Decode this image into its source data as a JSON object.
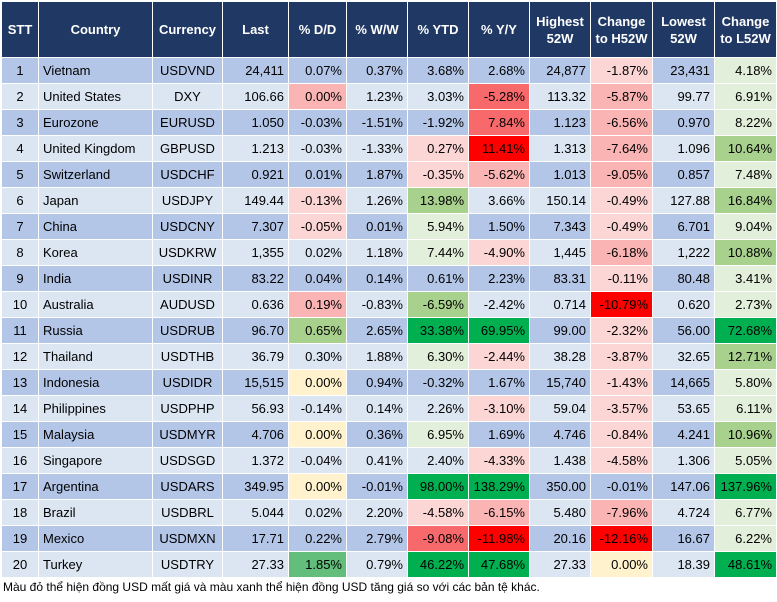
{
  "colors": {
    "header_bg": "#1f3864",
    "row_odd": "#b4c6e7",
    "row_even": "#dce6f2",
    "red_strong": "#ff0000",
    "red_mid": "#f8696b",
    "red_light": "#fbb4b4",
    "red_pale": "#fcd5d5",
    "neutral": "#fff2cc",
    "green_pale": "#e2efda",
    "green_light": "#c6e0b4",
    "green_mid": "#a9d18e",
    "green_strong": "#63be7b",
    "green_dark": "#00b050"
  },
  "headers": [
    "STT",
    "Country",
    "Currency",
    "Last",
    "% D/D",
    "% W/W",
    "% YTD",
    "% Y/Y",
    "Highest 52W",
    "Change to H52W",
    "Lowest 52W",
    "Change to L52W"
  ],
  "rows": [
    {
      "stt": "1",
      "country": "Vietnam",
      "currency": "USDVND",
      "last": "24,411",
      "dd": "0.07%",
      "ww": "0.37%",
      "ytd": "3.68%",
      "yy": "2.68%",
      "high": "24,877",
      "ch_high": "-1.87%",
      "low": "23,431",
      "ch_low": "4.18%",
      "bg": {
        "dd": "",
        "ww": "",
        "ytd": "",
        "yy": "",
        "ch_high": "#fcd5d5",
        "ch_low": "#e2efda"
      }
    },
    {
      "stt": "2",
      "country": "United States",
      "currency": "DXY",
      "last": "106.66",
      "dd": "0.00%",
      "ww": "1.23%",
      "ytd": "3.03%",
      "yy": "-5.28%",
      "high": "113.32",
      "ch_high": "-5.87%",
      "low": "99.77",
      "ch_low": "6.91%",
      "bg": {
        "dd": "#fbb4b4",
        "ww": "",
        "ytd": "",
        "yy": "#f8696b",
        "ch_high": "#fbb4b4",
        "ch_low": "#e2efda"
      }
    },
    {
      "stt": "3",
      "country": "Eurozone",
      "currency": "EURUSD",
      "last": "1.050",
      "dd": "-0.03%",
      "ww": "-1.51%",
      "ytd": "-1.92%",
      "yy": "7.84%",
      "high": "1.123",
      "ch_high": "-6.56%",
      "low": "0.970",
      "ch_low": "8.22%",
      "bg": {
        "dd": "",
        "ww": "",
        "ytd": "",
        "yy": "#f8696b",
        "ch_high": "#fbb4b4",
        "ch_low": "#e2efda"
      }
    },
    {
      "stt": "4",
      "country": "United Kingdom",
      "currency": "GBPUSD",
      "last": "1.213",
      "dd": "-0.03%",
      "ww": "-1.33%",
      "ytd": "0.27%",
      "yy": "11.41%",
      "high": "1.313",
      "ch_high": "-7.64%",
      "low": "1.096",
      "ch_low": "10.64%",
      "bg": {
        "dd": "",
        "ww": "",
        "ytd": "#fcd5d5",
        "yy": "#ff0000",
        "ch_high": "#fbb4b4",
        "ch_low": "#a9d18e"
      }
    },
    {
      "stt": "5",
      "country": "Switzerland",
      "currency": "USDCHF",
      "last": "0.921",
      "dd": "0.01%",
      "ww": "1.87%",
      "ytd": "-0.35%",
      "yy": "-5.62%",
      "high": "1.013",
      "ch_high": "-9.05%",
      "low": "0.857",
      "ch_low": "7.48%",
      "bg": {
        "dd": "",
        "ww": "",
        "ytd": "#fcd5d5",
        "yy": "#fbb4b4",
        "ch_high": "#fbb4b4",
        "ch_low": "#e2efda"
      }
    },
    {
      "stt": "6",
      "country": "Japan",
      "currency": "USDJPY",
      "last": "149.44",
      "dd": "-0.13%",
      "ww": "1.26%",
      "ytd": "13.98%",
      "yy": "3.66%",
      "high": "150.14",
      "ch_high": "-0.49%",
      "low": "127.88",
      "ch_low": "16.84%",
      "bg": {
        "dd": "#fcd5d5",
        "ww": "",
        "ytd": "#a9d18e",
        "yy": "",
        "ch_high": "#fcd5d5",
        "ch_low": "#a9d18e"
      }
    },
    {
      "stt": "7",
      "country": "China",
      "currency": "USDCNY",
      "last": "7.307",
      "dd": "-0.05%",
      "ww": "0.01%",
      "ytd": "5.94%",
      "yy": "1.50%",
      "high": "7.343",
      "ch_high": "-0.49%",
      "low": "6.701",
      "ch_low": "9.04%",
      "bg": {
        "dd": "#fcd5d5",
        "ww": "",
        "ytd": "#e2efda",
        "yy": "",
        "ch_high": "#fcd5d5",
        "ch_low": "#e2efda"
      }
    },
    {
      "stt": "8",
      "country": "Korea",
      "currency": "USDKRW",
      "last": "1,355",
      "dd": "0.02%",
      "ww": "1.18%",
      "ytd": "7.44%",
      "yy": "-4.90%",
      "high": "1,445",
      "ch_high": "-6.18%",
      "low": "1,222",
      "ch_low": "10.88%",
      "bg": {
        "dd": "",
        "ww": "",
        "ytd": "#e2efda",
        "yy": "#fcd5d5",
        "ch_high": "#fbb4b4",
        "ch_low": "#a9d18e"
      }
    },
    {
      "stt": "9",
      "country": "India",
      "currency": "USDINR",
      "last": "83.22",
      "dd": "0.04%",
      "ww": "0.14%",
      "ytd": "0.61%",
      "yy": "2.23%",
      "high": "83.31",
      "ch_high": "-0.11%",
      "low": "80.48",
      "ch_low": "3.41%",
      "bg": {
        "dd": "",
        "ww": "",
        "ytd": "",
        "yy": "",
        "ch_high": "#fcd5d5",
        "ch_low": "#e2efda"
      }
    },
    {
      "stt": "10",
      "country": "Australia",
      "currency": "AUDUSD",
      "last": "0.636",
      "dd": "0.19%",
      "ww": "-0.83%",
      "ytd": "-6.59%",
      "yy": "-2.42%",
      "high": "0.714",
      "ch_high": "-10.79%",
      "low": "0.620",
      "ch_low": "2.73%",
      "bg": {
        "dd": "#fbb4b4",
        "ww": "",
        "ytd": "#a9d18e",
        "yy": "",
        "ch_high": "#ff0000",
        "ch_low": "#e2efda"
      }
    },
    {
      "stt": "11",
      "country": "Russia",
      "currency": "USDRUB",
      "last": "96.70",
      "dd": "0.65%",
      "ww": "2.65%",
      "ytd": "33.38%",
      "yy": "69.95%",
      "high": "99.00",
      "ch_high": "-2.32%",
      "low": "56.00",
      "ch_low": "72.68%",
      "bg": {
        "dd": "#a9d18e",
        "ww": "",
        "ytd": "#00b050",
        "yy": "#00b050",
        "ch_high": "#fcd5d5",
        "ch_low": "#00b050"
      }
    },
    {
      "stt": "12",
      "country": "Thailand",
      "currency": "USDTHB",
      "last": "36.79",
      "dd": "0.30%",
      "ww": "1.88%",
      "ytd": "6.30%",
      "yy": "-2.44%",
      "high": "38.28",
      "ch_high": "-3.87%",
      "low": "32.65",
      "ch_low": "12.71%",
      "bg": {
        "dd": "",
        "ww": "",
        "ytd": "#e2efda",
        "yy": "#fcd5d5",
        "ch_high": "#fcd5d5",
        "ch_low": "#a9d18e"
      }
    },
    {
      "stt": "13",
      "country": "Indonesia",
      "currency": "USDIDR",
      "last": "15,515",
      "dd": "0.00%",
      "ww": "0.94%",
      "ytd": "-0.32%",
      "yy": "1.67%",
      "high": "15,740",
      "ch_high": "-1.43%",
      "low": "14,665",
      "ch_low": "5.80%",
      "bg": {
        "dd": "#fff2cc",
        "ww": "",
        "ytd": "",
        "yy": "",
        "ch_high": "#fcd5d5",
        "ch_low": "#e2efda"
      }
    },
    {
      "stt": "14",
      "country": "Philippines",
      "currency": "USDPHP",
      "last": "56.93",
      "dd": "-0.14%",
      "ww": "0.14%",
      "ytd": "2.26%",
      "yy": "-3.10%",
      "high": "59.04",
      "ch_high": "-3.57%",
      "low": "53.65",
      "ch_low": "6.11%",
      "bg": {
        "dd": "",
        "ww": "",
        "ytd": "",
        "yy": "#fcd5d5",
        "ch_high": "#fcd5d5",
        "ch_low": "#e2efda"
      }
    },
    {
      "stt": "15",
      "country": "Malaysia",
      "currency": "USDMYR",
      "last": "4.706",
      "dd": "0.00%",
      "ww": "0.36%",
      "ytd": "6.95%",
      "yy": "1.69%",
      "high": "4.746",
      "ch_high": "-0.84%",
      "low": "4.241",
      "ch_low": "10.96%",
      "bg": {
        "dd": "#fff2cc",
        "ww": "",
        "ytd": "#e2efda",
        "yy": "",
        "ch_high": "#fcd5d5",
        "ch_low": "#a9d18e"
      }
    },
    {
      "stt": "16",
      "country": "Singapore",
      "currency": "USDSGD",
      "last": "1.372",
      "dd": "-0.04%",
      "ww": "0.41%",
      "ytd": "2.40%",
      "yy": "-4.33%",
      "high": "1.438",
      "ch_high": "-4.58%",
      "low": "1.306",
      "ch_low": "5.05%",
      "bg": {
        "dd": "",
        "ww": "",
        "ytd": "",
        "yy": "#fcd5d5",
        "ch_high": "#fcd5d5",
        "ch_low": "#e2efda"
      }
    },
    {
      "stt": "17",
      "country": "Argentina",
      "currency": "USDARS",
      "last": "349.95",
      "dd": "0.00%",
      "ww": "-0.01%",
      "ytd": "98.00%",
      "yy": "138.29%",
      "high": "350.00",
      "ch_high": "-0.01%",
      "low": "147.06",
      "ch_low": "137.96%",
      "bg": {
        "dd": "#fff2cc",
        "ww": "",
        "ytd": "#00b050",
        "yy": "#00b050",
        "ch_high": "",
        "ch_low": "#00b050"
      }
    },
    {
      "stt": "18",
      "country": "Brazil",
      "currency": "USDBRL",
      "last": "5.044",
      "dd": "0.02%",
      "ww": "2.20%",
      "ytd": "-4.58%",
      "yy": "-6.15%",
      "high": "5.480",
      "ch_high": "-7.96%",
      "low": "4.724",
      "ch_low": "6.77%",
      "bg": {
        "dd": "",
        "ww": "",
        "ytd": "#fcd5d5",
        "yy": "#fbb4b4",
        "ch_high": "#fbb4b4",
        "ch_low": "#e2efda"
      }
    },
    {
      "stt": "19",
      "country": "Mexico",
      "currency": "USDMXN",
      "last": "17.71",
      "dd": "0.22%",
      "ww": "2.79%",
      "ytd": "-9.08%",
      "yy": "-11.98%",
      "high": "20.16",
      "ch_high": "-12.16%",
      "low": "16.67",
      "ch_low": "6.22%",
      "bg": {
        "dd": "",
        "ww": "",
        "ytd": "#f8696b",
        "yy": "#ff0000",
        "ch_high": "#ff0000",
        "ch_low": "#e2efda"
      }
    },
    {
      "stt": "20",
      "country": "Turkey",
      "currency": "USDTRY",
      "last": "27.33",
      "dd": "1.85%",
      "ww": "0.79%",
      "ytd": "46.22%",
      "yy": "47.68%",
      "high": "27.33",
      "ch_high": "0.00%",
      "low": "18.39",
      "ch_low": "48.61%",
      "bg": {
        "dd": "#63be7b",
        "ww": "",
        "ytd": "#00b050",
        "yy": "#00b050",
        "ch_high": "#fff2cc",
        "ch_low": "#00b050"
      }
    }
  ],
  "note": "Màu đỏ thể hiện đồng USD mất giá và màu xanh thể hiện đồng USD tăng giá so với các bản tệ khác."
}
